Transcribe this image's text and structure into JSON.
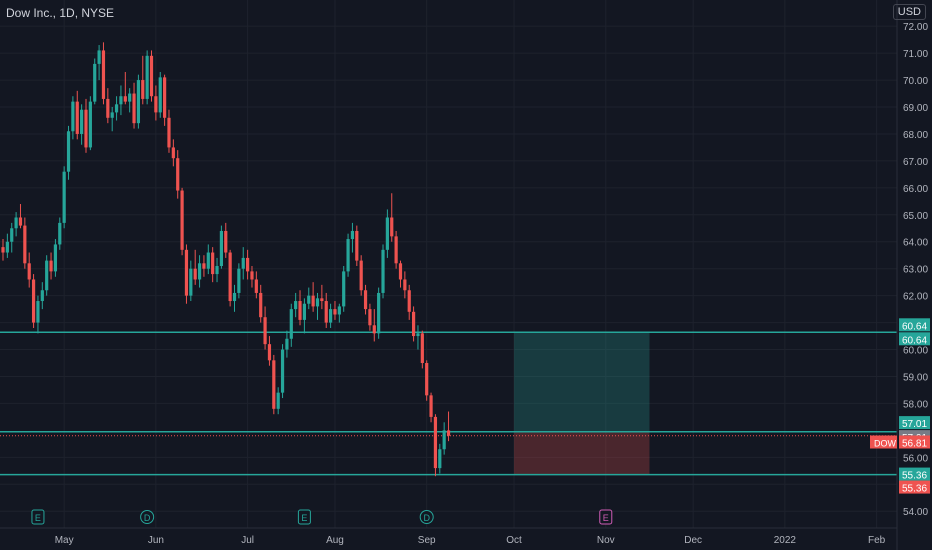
{
  "header": {
    "symbol_title": "Dow Inc., 1D, NYSE",
    "currency": "USD"
  },
  "colors": {
    "background": "#131722",
    "grid": "#1e222d",
    "up": "#26a69a",
    "down": "#ef5350",
    "line": "#26a69a",
    "axis_text": "#b2b5be"
  },
  "chart_data": {
    "type": "candlestick",
    "y_range": [
      53.6,
      72.6
    ],
    "y_ticks": [
      "72.00",
      "71.00",
      "70.00",
      "69.00",
      "68.00",
      "67.00",
      "66.00",
      "65.00",
      "64.00",
      "63.00",
      "62.00",
      "61.00",
      "60.00",
      "59.00",
      "58.00",
      "56.00",
      "55.00",
      "54.00"
    ],
    "x_ticks": [
      "May",
      "Jun",
      "Jul",
      "Aug",
      "Sep",
      "Oct",
      "Nov",
      "Dec",
      "2022",
      "Feb"
    ],
    "x_tick_days": [
      14,
      35,
      56,
      76,
      97,
      117,
      138,
      158,
      179,
      200
    ],
    "horizontal_lines": [
      60.64,
      56.95,
      55.36
    ],
    "position": {
      "start_day": 117,
      "end_day": 148,
      "entry": 56.95,
      "target": 60.64,
      "stop": 55.36
    },
    "price_labels": [
      {
        "text": "60.64",
        "value": 60.64,
        "color": "#26a69a",
        "offset": -7
      },
      {
        "text": "60.64",
        "value": 60.64,
        "color": "#26a69a",
        "offset": 7
      },
      {
        "text": "57.01",
        "value": 57.01,
        "color": "#26a69a",
        "offset": -7
      },
      {
        "text": "57.01",
        "value": 57.01,
        "color": "#787b86",
        "offset": 7
      },
      {
        "text": "56.81",
        "value": 56.81,
        "color": "#ef5350",
        "offset": 7,
        "tag": "DOW"
      },
      {
        "text": "55.36",
        "value": 55.36,
        "color": "#26a69a",
        "offset": 0
      },
      {
        "text": "55.36",
        "value": 55.36,
        "color": "#ef5350",
        "offset": 13
      }
    ],
    "events": [
      {
        "letter": "E",
        "day": 8,
        "color": "#26a69a"
      },
      {
        "letter": "D",
        "day": 33,
        "color": "#26a69a"
      },
      {
        "letter": "E",
        "day": 69,
        "color": "#26a69a"
      },
      {
        "letter": "D",
        "day": 97,
        "color": "#26a69a"
      },
      {
        "letter": "E",
        "day": 138,
        "color": "#d05cb5"
      }
    ],
    "candles": [
      [
        63.8,
        64.1,
        63.3,
        63.6
      ],
      [
        63.6,
        64.3,
        63.4,
        64.0
      ],
      [
        64.0,
        64.7,
        63.6,
        64.5
      ],
      [
        64.5,
        65.1,
        64.2,
        64.9
      ],
      [
        64.9,
        65.4,
        64.5,
        64.6
      ],
      [
        64.6,
        64.9,
        63.0,
        63.2
      ],
      [
        63.2,
        63.6,
        62.3,
        62.6
      ],
      [
        62.6,
        62.8,
        60.8,
        61.0
      ],
      [
        61.0,
        62.0,
        60.6,
        61.8
      ],
      [
        61.8,
        62.5,
        61.5,
        62.2
      ],
      [
        62.2,
        63.5,
        62.0,
        63.3
      ],
      [
        63.3,
        63.6,
        62.6,
        62.9
      ],
      [
        62.9,
        64.1,
        62.7,
        63.9
      ],
      [
        63.9,
        64.9,
        63.7,
        64.7
      ],
      [
        64.7,
        66.8,
        64.5,
        66.6
      ],
      [
        66.6,
        68.3,
        66.3,
        68.1
      ],
      [
        68.1,
        69.4,
        67.8,
        69.2
      ],
      [
        69.2,
        69.6,
        67.8,
        68.0
      ],
      [
        68.0,
        69.1,
        67.6,
        68.9
      ],
      [
        68.9,
        69.3,
        67.3,
        67.5
      ],
      [
        67.5,
        69.4,
        67.4,
        69.2
      ],
      [
        69.2,
        70.8,
        69.1,
        70.6
      ],
      [
        70.6,
        71.3,
        70.0,
        71.1
      ],
      [
        71.1,
        71.4,
        69.1,
        69.3
      ],
      [
        69.3,
        69.7,
        68.4,
        68.6
      ],
      [
        68.6,
        69.0,
        68.1,
        68.8
      ],
      [
        68.8,
        69.4,
        68.5,
        69.1
      ],
      [
        69.1,
        69.8,
        68.7,
        69.4
      ],
      [
        69.4,
        70.3,
        69.1,
        69.2
      ],
      [
        69.2,
        69.7,
        68.8,
        69.5
      ],
      [
        69.5,
        69.9,
        68.2,
        68.4
      ],
      [
        68.4,
        70.2,
        68.2,
        70.0
      ],
      [
        70.0,
        70.9,
        69.1,
        69.3
      ],
      [
        69.3,
        71.1,
        69.1,
        70.9
      ],
      [
        70.9,
        71.1,
        69.2,
        69.4
      ],
      [
        69.4,
        69.8,
        68.5,
        68.8
      ],
      [
        68.8,
        70.3,
        68.6,
        70.1
      ],
      [
        70.1,
        70.2,
        68.3,
        68.6
      ],
      [
        68.6,
        68.9,
        67.3,
        67.5
      ],
      [
        67.5,
        67.8,
        66.8,
        67.1
      ],
      [
        67.1,
        67.4,
        65.6,
        65.9
      ],
      [
        65.9,
        66.0,
        63.5,
        63.7
      ],
      [
        63.7,
        63.9,
        61.7,
        62.0
      ],
      [
        62.0,
        63.3,
        61.8,
        63.0
      ],
      [
        63.0,
        63.7,
        62.4,
        62.6
      ],
      [
        62.6,
        63.5,
        62.3,
        63.2
      ],
      [
        63.2,
        63.5,
        62.7,
        63.0
      ],
      [
        63.0,
        63.9,
        62.8,
        63.6
      ],
      [
        63.6,
        63.8,
        62.5,
        62.8
      ],
      [
        62.8,
        63.4,
        62.5,
        63.1
      ],
      [
        63.1,
        64.6,
        63.0,
        64.4
      ],
      [
        64.4,
        64.7,
        63.4,
        63.6
      ],
      [
        63.6,
        63.7,
        61.6,
        61.8
      ],
      [
        61.8,
        62.4,
        61.4,
        62.1
      ],
      [
        62.1,
        63.2,
        61.9,
        63.0
      ],
      [
        63.0,
        63.8,
        62.6,
        63.4
      ],
      [
        63.4,
        63.7,
        62.6,
        62.9
      ],
      [
        62.9,
        63.1,
        62.3,
        62.6
      ],
      [
        62.6,
        62.9,
        61.9,
        62.1
      ],
      [
        62.1,
        62.4,
        61.0,
        61.2
      ],
      [
        61.2,
        61.6,
        60.0,
        60.2
      ],
      [
        60.2,
        60.5,
        59.4,
        59.6
      ],
      [
        59.6,
        59.8,
        57.6,
        57.8
      ],
      [
        57.8,
        58.6,
        57.6,
        58.4
      ],
      [
        58.4,
        60.2,
        58.2,
        60.0
      ],
      [
        60.0,
        60.7,
        59.7,
        60.4
      ],
      [
        60.4,
        61.7,
        60.1,
        61.5
      ],
      [
        61.5,
        62.1,
        61.2,
        61.8
      ],
      [
        61.8,
        62.2,
        60.9,
        61.1
      ],
      [
        61.1,
        61.9,
        60.6,
        61.7
      ],
      [
        61.7,
        62.3,
        61.5,
        62.0
      ],
      [
        62.0,
        62.5,
        61.4,
        61.6
      ],
      [
        61.6,
        62.1,
        61.1,
        61.9
      ],
      [
        61.9,
        62.4,
        61.5,
        61.8
      ],
      [
        61.8,
        62.1,
        60.8,
        61.0
      ],
      [
        61.0,
        61.7,
        60.8,
        61.5
      ],
      [
        61.5,
        61.8,
        61.1,
        61.3
      ],
      [
        61.3,
        61.7,
        61.0,
        61.6
      ],
      [
        61.6,
        63.1,
        61.4,
        62.9
      ],
      [
        62.9,
        64.3,
        62.7,
        64.1
      ],
      [
        64.1,
        64.7,
        63.6,
        64.4
      ],
      [
        64.4,
        64.6,
        63.1,
        63.3
      ],
      [
        63.3,
        63.5,
        62.0,
        62.2
      ],
      [
        62.2,
        62.4,
        61.3,
        61.5
      ],
      [
        61.5,
        61.7,
        60.7,
        60.9
      ],
      [
        60.9,
        61.5,
        60.3,
        60.6
      ],
      [
        60.6,
        62.3,
        60.4,
        62.1
      ],
      [
        62.1,
        63.9,
        61.9,
        63.7
      ],
      [
        63.7,
        65.2,
        63.4,
        64.9
      ],
      [
        64.9,
        65.8,
        64.0,
        64.2
      ],
      [
        64.2,
        64.4,
        63.0,
        63.2
      ],
      [
        63.2,
        63.3,
        62.3,
        62.6
      ],
      [
        62.6,
        62.9,
        61.9,
        62.2
      ],
      [
        62.2,
        62.4,
        61.1,
        61.4
      ],
      [
        61.4,
        61.6,
        60.3,
        60.5
      ],
      [
        60.5,
        60.9,
        60.0,
        60.6
      ],
      [
        60.6,
        60.7,
        59.3,
        59.5
      ],
      [
        59.5,
        59.6,
        58.1,
        58.3
      ],
      [
        58.3,
        58.4,
        57.3,
        57.5
      ],
      [
        57.5,
        57.6,
        55.3,
        55.6
      ],
      [
        55.6,
        56.5,
        55.4,
        56.3
      ],
      [
        56.3,
        57.3,
        56.1,
        57.0
      ],
      [
        57.0,
        57.7,
        56.6,
        56.8
      ]
    ]
  }
}
